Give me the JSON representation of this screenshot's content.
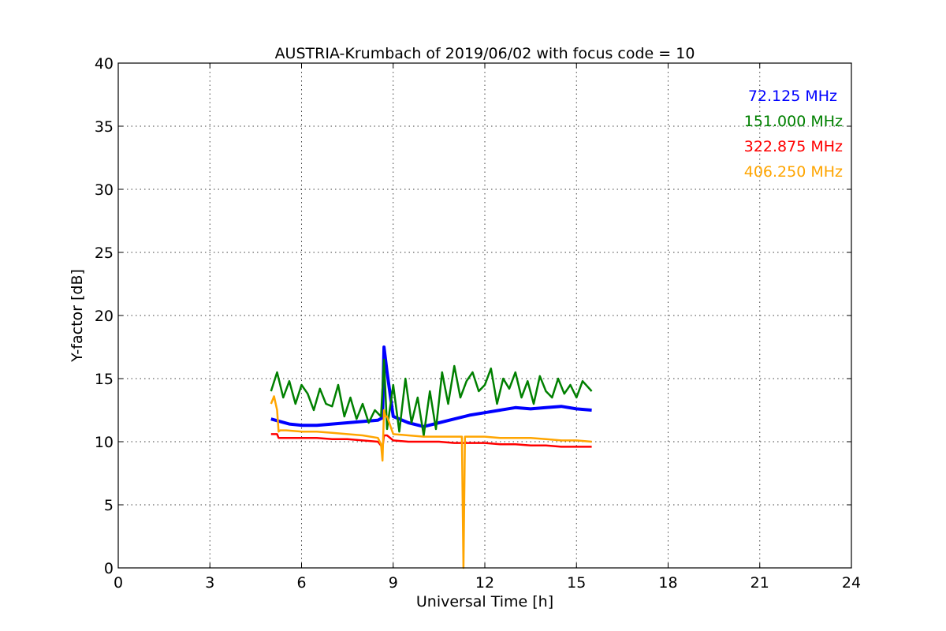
{
  "chart_data": {
    "type": "line",
    "title": "AUSTRIA-Krumbach of 2019/06/02 with focus code = 10",
    "xlabel": "Universal Time [h]",
    "ylabel": "Y-factor [dB]",
    "xlim": [
      0,
      24
    ],
    "ylim": [
      0,
      40
    ],
    "xticks": [
      "0",
      "3",
      "6",
      "9",
      "12",
      "15",
      "18",
      "21",
      "24"
    ],
    "yticks": [
      "0",
      "5",
      "10",
      "15",
      "20",
      "25",
      "30",
      "35",
      "40"
    ],
    "grid": true,
    "legend_placement": "top-right",
    "series": [
      {
        "name": "72.125 MHz",
        "color": "#0000ff",
        "x": [
          5.0,
          5.3,
          5.6,
          6.0,
          6.5,
          7.0,
          7.5,
          8.0,
          8.5,
          8.65,
          8.7,
          8.8,
          9.0,
          9.5,
          10.0,
          10.5,
          11.0,
          11.5,
          12.0,
          12.5,
          13.0,
          13.5,
          14.0,
          14.5,
          15.0,
          15.5
        ],
        "y": [
          11.8,
          11.6,
          11.4,
          11.3,
          11.3,
          11.4,
          11.5,
          11.6,
          11.7,
          11.9,
          17.5,
          15.5,
          12.0,
          11.5,
          11.2,
          11.5,
          11.8,
          12.1,
          12.3,
          12.5,
          12.7,
          12.6,
          12.7,
          12.8,
          12.6,
          12.5
        ]
      },
      {
        "name": "151.000 MHz",
        "color": "#008000",
        "x": [
          5.0,
          5.2,
          5.4,
          5.6,
          5.8,
          6.0,
          6.2,
          6.4,
          6.6,
          6.8,
          7.0,
          7.2,
          7.4,
          7.6,
          7.8,
          8.0,
          8.2,
          8.4,
          8.6,
          8.7,
          8.8,
          9.0,
          9.2,
          9.4,
          9.6,
          9.8,
          10.0,
          10.2,
          10.4,
          10.6,
          10.8,
          11.0,
          11.2,
          11.4,
          11.6,
          11.8,
          12.0,
          12.2,
          12.4,
          12.6,
          12.8,
          13.0,
          13.2,
          13.4,
          13.6,
          13.8,
          14.0,
          14.2,
          14.4,
          14.6,
          14.8,
          15.0,
          15.2,
          15.5
        ],
        "y": [
          14.0,
          15.5,
          13.5,
          14.8,
          13.0,
          14.5,
          13.8,
          12.5,
          14.2,
          13.0,
          12.8,
          14.5,
          12.0,
          13.5,
          11.8,
          13.0,
          11.5,
          12.5,
          12.0,
          16.5,
          11.0,
          14.5,
          10.8,
          15.0,
          11.5,
          13.5,
          10.5,
          14.0,
          11.0,
          15.5,
          13.0,
          16.0,
          13.5,
          14.8,
          15.5,
          14.0,
          14.5,
          15.8,
          13.0,
          15.0,
          14.2,
          15.5,
          13.5,
          14.8,
          13.0,
          15.2,
          14.0,
          13.5,
          15.0,
          13.8,
          14.5,
          13.5,
          14.8,
          14.0
        ]
      },
      {
        "name": "322.875 MHz",
        "color": "#ff0000",
        "x": [
          5.0,
          5.2,
          5.25,
          5.5,
          6.0,
          6.5,
          7.0,
          7.5,
          8.0,
          8.5,
          8.6,
          8.65,
          8.7,
          8.8,
          9.0,
          9.5,
          10.0,
          10.5,
          11.0,
          11.5,
          12.0,
          12.5,
          13.0,
          13.5,
          14.0,
          14.5,
          15.0,
          15.5
        ],
        "y": [
          10.6,
          10.6,
          10.3,
          10.3,
          10.3,
          10.3,
          10.2,
          10.2,
          10.1,
          10.0,
          9.7,
          9.5,
          10.5,
          10.5,
          10.1,
          10.0,
          10.0,
          10.0,
          9.9,
          9.9,
          9.9,
          9.8,
          9.8,
          9.7,
          9.7,
          9.6,
          9.6,
          9.6
        ]
      },
      {
        "name": "406.250 MHz",
        "color": "#ffa500",
        "x": [
          5.0,
          5.1,
          5.2,
          5.25,
          5.3,
          5.5,
          6.0,
          6.5,
          7.0,
          7.5,
          8.0,
          8.5,
          8.6,
          8.65,
          8.7,
          8.75,
          8.8,
          9.0,
          9.5,
          10.0,
          10.5,
          11.0,
          11.25,
          11.3,
          11.35,
          11.4,
          11.5,
          12.0,
          12.5,
          13.0,
          13.5,
          14.0,
          14.5,
          15.0,
          15.5
        ],
        "y": [
          13.0,
          13.6,
          12.5,
          10.8,
          10.9,
          10.9,
          10.8,
          10.8,
          10.7,
          10.6,
          10.5,
          10.3,
          9.8,
          8.5,
          12.5,
          12.0,
          12.0,
          10.6,
          10.5,
          10.4,
          10.4,
          10.4,
          10.4,
          0.0,
          10.4,
          10.4,
          10.4,
          10.4,
          10.3,
          10.3,
          10.3,
          10.2,
          10.1,
          10.1,
          10.0
        ]
      }
    ]
  }
}
